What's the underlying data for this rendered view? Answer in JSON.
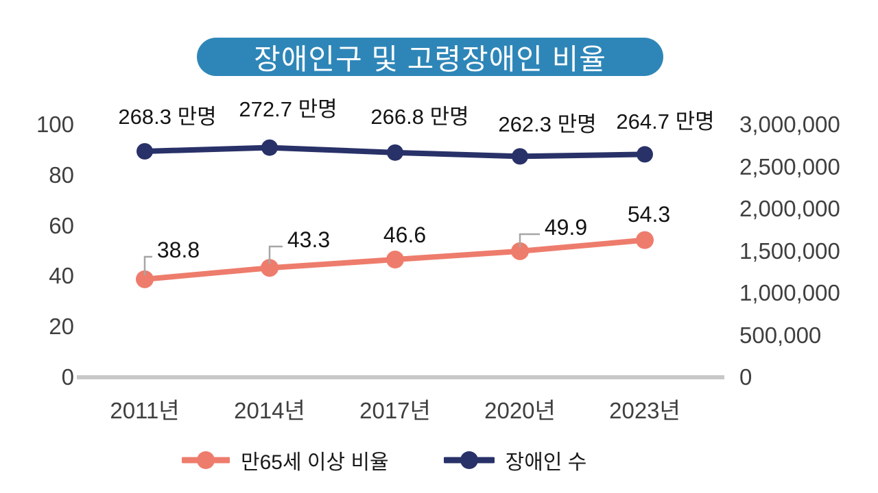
{
  "chart_data": {
    "type": "line",
    "title": "장애인구 및 고령장애인 비율",
    "categories": [
      "2011년",
      "2014년",
      "2017년",
      "2020년",
      "2023년"
    ],
    "series": [
      {
        "name": "만65세 이상 비율",
        "axis": "left",
        "color": "#ee7c6c",
        "values": [
          38.8,
          43.3,
          46.6,
          49.9,
          54.3
        ],
        "point_labels": [
          "38.8",
          "43.3",
          "46.6",
          "49.9",
          "54.3"
        ]
      },
      {
        "name": "장애인 수",
        "axis": "right",
        "color": "#283168",
        "values": [
          2683000,
          2727000,
          2668000,
          2623000,
          2647000
        ],
        "point_labels": [
          "268.3 만명",
          "272.7 만명",
          "266.8 만명",
          "262.3 만명",
          "264.7 만명"
        ]
      }
    ],
    "left_axis": {
      "min": 0,
      "max": 100,
      "ticks": [
        "0",
        "20",
        "40",
        "60",
        "80",
        "100"
      ]
    },
    "right_axis": {
      "min": 0,
      "max": 3000000,
      "ticks": [
        "0",
        "500,000",
        "1,000,000",
        "1,500,000",
        "2,000,000",
        "2,500,000",
        "3,000,000"
      ]
    },
    "grid": false,
    "legend_position": "bottom"
  },
  "colors": {
    "title_bg": "#2e86b8",
    "title_text": "#ffffff",
    "axis_text": "#3f3f3f",
    "data_label_text": "#141414",
    "baseline": "#c8c8c8",
    "leader_line": "#a6a6a6"
  }
}
